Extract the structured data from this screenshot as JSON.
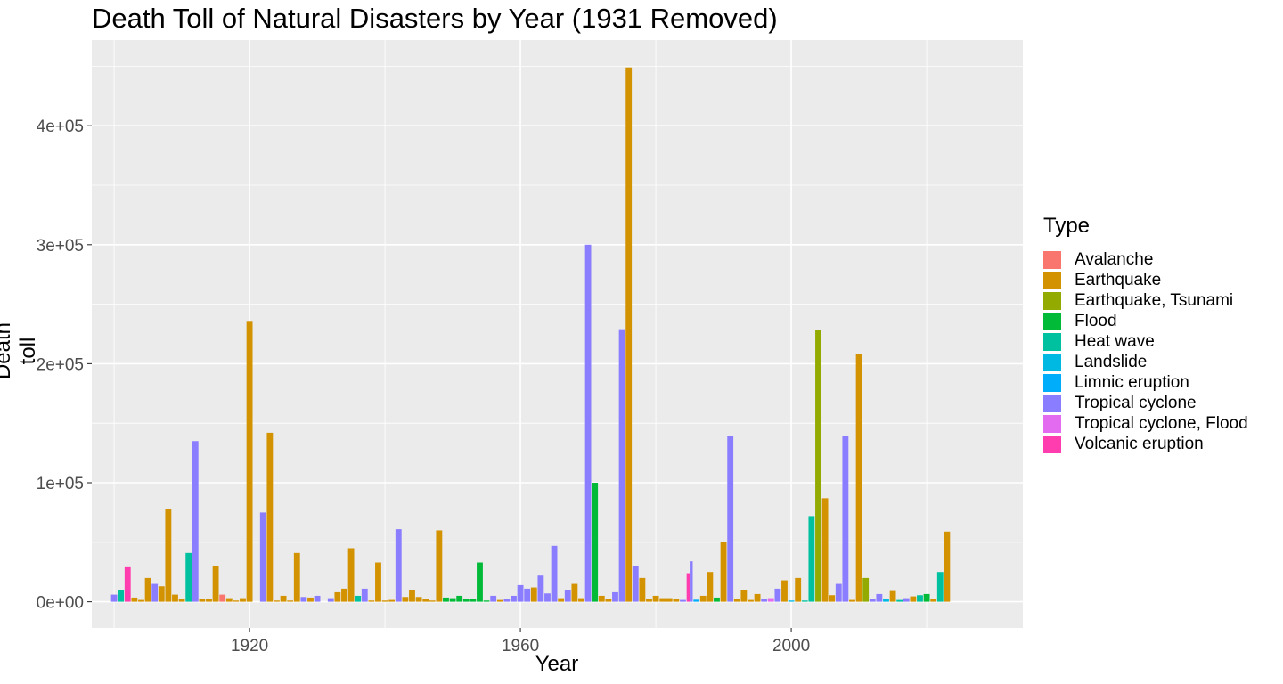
{
  "chart_data": {
    "type": "bar",
    "title": "Death Toll of Natural Disasters by Year (1931 Removed)",
    "xlabel": "Year",
    "ylabel": "Death toll",
    "xlim": [
      1896.7,
      2034.2
    ],
    "ylim": [
      -22000,
      472000
    ],
    "x_ticks": [
      {
        "value": 1920,
        "label": "1920"
      },
      {
        "value": 1960,
        "label": "1960"
      },
      {
        "value": 2000,
        "label": "2000"
      }
    ],
    "y_ticks": [
      {
        "value": 0,
        "label": "0e+00"
      },
      {
        "value": 100000,
        "label": "1e+05"
      },
      {
        "value": 200000,
        "label": "2e+05"
      },
      {
        "value": 300000,
        "label": "3e+05"
      },
      {
        "value": 400000,
        "label": "4e+05"
      }
    ],
    "legend": {
      "title": "Type",
      "position": "right",
      "items": [
        {
          "name": "Avalanche",
          "color": "#F8766D"
        },
        {
          "name": "Earthquake",
          "color": "#D39200"
        },
        {
          "name": "Earthquake, Tsunami",
          "color": "#93AA00"
        },
        {
          "name": "Flood",
          "color": "#00BA38"
        },
        {
          "name": "Heat wave",
          "color": "#00C19F"
        },
        {
          "name": "Landslide",
          "color": "#00B9E3"
        },
        {
          "name": "Limnic eruption",
          "color": "#00ADFA"
        },
        {
          "name": "Tropical cyclone",
          "color": "#8B7DFF"
        },
        {
          "name": "Tropical cyclone, Flood",
          "color": "#E36BF0"
        },
        {
          "name": "Volcanic eruption",
          "color": "#FF3DAE"
        }
      ]
    },
    "bars": [
      {
        "year": 1900,
        "type": "Tropical cyclone",
        "value": 6000
      },
      {
        "year": 1901,
        "type": "Heat wave",
        "value": 9500
      },
      {
        "year": 1902,
        "type": "Volcanic eruption",
        "value": 29000
      },
      {
        "year": 1903,
        "type": "Earthquake",
        "value": 3500
      },
      {
        "year": 1904,
        "type": "Earthquake",
        "value": 1500
      },
      {
        "year": 1905,
        "type": "Earthquake",
        "value": 20000
      },
      {
        "year": 1906,
        "type": "Tropical cyclone",
        "value": 15000
      },
      {
        "year": 1907,
        "type": "Earthquake",
        "value": 13000
      },
      {
        "year": 1908,
        "type": "Earthquake",
        "value": 78000
      },
      {
        "year": 1909,
        "type": "Earthquake",
        "value": 6000
      },
      {
        "year": 1910,
        "type": "Earthquake",
        "value": 2000
      },
      {
        "year": 1911,
        "type": "Heat wave",
        "value": 41000
      },
      {
        "year": 1912,
        "type": "Tropical cyclone",
        "value": 135000
      },
      {
        "year": 1913,
        "type": "Earthquake",
        "value": 2000
      },
      {
        "year": 1914,
        "type": "Earthquake",
        "value": 2000
      },
      {
        "year": 1915,
        "type": "Earthquake",
        "value": 30000
      },
      {
        "year": 1916,
        "type": "Avalanche",
        "value": 6000
      },
      {
        "year": 1917,
        "type": "Earthquake",
        "value": 3000
      },
      {
        "year": 1918,
        "type": "Earthquake",
        "value": 1000
      },
      {
        "year": 1919,
        "type": "Earthquake",
        "value": 3000
      },
      {
        "year": 1920,
        "type": "Earthquake",
        "value": 236000
      },
      {
        "year": 1922,
        "type": "Tropical cyclone",
        "value": 75000
      },
      {
        "year": 1923,
        "type": "Earthquake",
        "value": 142000
      },
      {
        "year": 1924,
        "type": "Earthquake",
        "value": 1000
      },
      {
        "year": 1925,
        "type": "Earthquake",
        "value": 5000
      },
      {
        "year": 1926,
        "type": "Earthquake",
        "value": 1000
      },
      {
        "year": 1927,
        "type": "Earthquake",
        "value": 41000
      },
      {
        "year": 1928,
        "type": "Tropical cyclone",
        "value": 4000
      },
      {
        "year": 1929,
        "type": "Earthquake",
        "value": 3500
      },
      {
        "year": 1930,
        "type": "Tropical cyclone",
        "value": 5000
      },
      {
        "year": 1932,
        "type": "Tropical cyclone",
        "value": 3000
      },
      {
        "year": 1933,
        "type": "Earthquake",
        "value": 8000
      },
      {
        "year": 1934,
        "type": "Earthquake",
        "value": 11000
      },
      {
        "year": 1935,
        "type": "Earthquake",
        "value": 45000
      },
      {
        "year": 1936,
        "type": "Heat wave",
        "value": 5000
      },
      {
        "year": 1937,
        "type": "Tropical cyclone",
        "value": 11000
      },
      {
        "year": 1938,
        "type": "Earthquake",
        "value": 1000
      },
      {
        "year": 1939,
        "type": "Earthquake",
        "value": 33000
      },
      {
        "year": 1940,
        "type": "Earthquake",
        "value": 1000
      },
      {
        "year": 1941,
        "type": "Earthquake",
        "value": 1500
      },
      {
        "year": 1942,
        "type": "Tropical cyclone",
        "value": 61000
      },
      {
        "year": 1943,
        "type": "Earthquake",
        "value": 4000
      },
      {
        "year": 1944,
        "type": "Earthquake",
        "value": 9500
      },
      {
        "year": 1945,
        "type": "Earthquake",
        "value": 4000
      },
      {
        "year": 1946,
        "type": "Earthquake",
        "value": 2000
      },
      {
        "year": 1947,
        "type": "Earthquake",
        "value": 1000
      },
      {
        "year": 1948,
        "type": "Earthquake",
        "value": 60000
      },
      {
        "year": 1949,
        "type": "Flood",
        "value": 3500
      },
      {
        "year": 1950,
        "type": "Flood",
        "value": 3000
      },
      {
        "year": 1951,
        "type": "Flood",
        "value": 5000
      },
      {
        "year": 1952,
        "type": "Flood",
        "value": 2000
      },
      {
        "year": 1953,
        "type": "Flood",
        "value": 2000
      },
      {
        "year": 1954,
        "type": "Flood",
        "value": 33000
      },
      {
        "year": 1955,
        "type": "Flood",
        "value": 1000
      },
      {
        "year": 1956,
        "type": "Tropical cyclone",
        "value": 5000
      },
      {
        "year": 1957,
        "type": "Earthquake",
        "value": 1500
      },
      {
        "year": 1958,
        "type": "Tropical cyclone",
        "value": 2000
      },
      {
        "year": 1959,
        "type": "Tropical cyclone",
        "value": 5000
      },
      {
        "year": 1960,
        "type": "Tropical cyclone",
        "value": 14000
      },
      {
        "year": 1961,
        "type": "Tropical cyclone",
        "value": 11000
      },
      {
        "year": 1962,
        "type": "Earthquake",
        "value": 12000
      },
      {
        "year": 1963,
        "type": "Tropical cyclone",
        "value": 22000
      },
      {
        "year": 1964,
        "type": "Tropical cyclone",
        "value": 7000
      },
      {
        "year": 1965,
        "type": "Tropical cyclone",
        "value": 47000
      },
      {
        "year": 1966,
        "type": "Earthquake",
        "value": 3000
      },
      {
        "year": 1967,
        "type": "Tropical cyclone",
        "value": 10000
      },
      {
        "year": 1968,
        "type": "Earthquake",
        "value": 15000
      },
      {
        "year": 1969,
        "type": "Earthquake",
        "value": 3000
      },
      {
        "year": 1970,
        "type": "Tropical cyclone",
        "value": 300000
      },
      {
        "year": 1971,
        "type": "Flood",
        "value": 100000
      },
      {
        "year": 1972,
        "type": "Earthquake",
        "value": 5000
      },
      {
        "year": 1973,
        "type": "Earthquake",
        "value": 2500
      },
      {
        "year": 1974,
        "type": "Tropical cyclone",
        "value": 8000
      },
      {
        "year": 1975,
        "type": "Tropical cyclone",
        "value": 229000
      },
      {
        "year": 1976,
        "type": "Earthquake",
        "value": 449000
      },
      {
        "year": 1977,
        "type": "Tropical cyclone",
        "value": 30000
      },
      {
        "year": 1978,
        "type": "Earthquake",
        "value": 20000
      },
      {
        "year": 1979,
        "type": "Earthquake",
        "value": 2500
      },
      {
        "year": 1980,
        "type": "Earthquake",
        "value": 5000
      },
      {
        "year": 1981,
        "type": "Earthquake",
        "value": 3000
      },
      {
        "year": 1982,
        "type": "Earthquake",
        "value": 3000
      },
      {
        "year": 1983,
        "type": "Earthquake",
        "value": 2000
      },
      {
        "year": 1984,
        "type": "Tropical cyclone",
        "value": 1500
      },
      {
        "year": 1985,
        "type": "Volcanic eruption",
        "value": 24000
      },
      {
        "year": 1985,
        "type": "Tropical cyclone",
        "value": 34000
      },
      {
        "year": 1986,
        "type": "Limnic eruption",
        "value": 1700
      },
      {
        "year": 1987,
        "type": "Earthquake",
        "value": 5000
      },
      {
        "year": 1988,
        "type": "Earthquake",
        "value": 25000
      },
      {
        "year": 1989,
        "type": "Flood",
        "value": 3500
      },
      {
        "year": 1990,
        "type": "Earthquake",
        "value": 50000
      },
      {
        "year": 1991,
        "type": "Tropical cyclone",
        "value": 139000
      },
      {
        "year": 1992,
        "type": "Earthquake",
        "value": 2500
      },
      {
        "year": 1993,
        "type": "Earthquake",
        "value": 10000
      },
      {
        "year": 1994,
        "type": "Earthquake",
        "value": 1500
      },
      {
        "year": 1995,
        "type": "Earthquake",
        "value": 6500
      },
      {
        "year": 1996,
        "type": "Tropical cyclone",
        "value": 2000
      },
      {
        "year": 1997,
        "type": "Tropical cyclone, Flood",
        "value": 3000
      },
      {
        "year": 1998,
        "type": "Tropical cyclone",
        "value": 11000
      },
      {
        "year": 1999,
        "type": "Earthquake",
        "value": 18000
      },
      {
        "year": 2000,
        "type": "Landslide",
        "value": 1000
      },
      {
        "year": 2001,
        "type": "Earthquake",
        "value": 20000
      },
      {
        "year": 2002,
        "type": "Heat wave",
        "value": 1000
      },
      {
        "year": 2003,
        "type": "Heat wave",
        "value": 72000
      },
      {
        "year": 2004,
        "type": "Earthquake, Tsunami",
        "value": 228000
      },
      {
        "year": 2005,
        "type": "Earthquake",
        "value": 87000
      },
      {
        "year": 2006,
        "type": "Earthquake",
        "value": 5500
      },
      {
        "year": 2007,
        "type": "Tropical cyclone",
        "value": 15000
      },
      {
        "year": 2008,
        "type": "Tropical cyclone",
        "value": 139000
      },
      {
        "year": 2009,
        "type": "Earthquake",
        "value": 1500
      },
      {
        "year": 2010,
        "type": "Earthquake",
        "value": 208000
      },
      {
        "year": 2011,
        "type": "Earthquake, Tsunami",
        "value": 20000
      },
      {
        "year": 2012,
        "type": "Tropical cyclone",
        "value": 2000
      },
      {
        "year": 2013,
        "type": "Tropical cyclone",
        "value": 6500
      },
      {
        "year": 2014,
        "type": "Landslide",
        "value": 2500
      },
      {
        "year": 2015,
        "type": "Earthquake",
        "value": 9000
      },
      {
        "year": 2016,
        "type": "Heat wave",
        "value": 1500
      },
      {
        "year": 2017,
        "type": "Tropical cyclone",
        "value": 3000
      },
      {
        "year": 2018,
        "type": "Earthquake",
        "value": 4500
      },
      {
        "year": 2019,
        "type": "Heat wave",
        "value": 5500
      },
      {
        "year": 2020,
        "type": "Flood",
        "value": 6500
      },
      {
        "year": 2021,
        "type": "Earthquake",
        "value": 2000
      },
      {
        "year": 2022,
        "type": "Heat wave",
        "value": 25000
      },
      {
        "year": 2023,
        "type": "Earthquake",
        "value": 59000
      }
    ]
  }
}
